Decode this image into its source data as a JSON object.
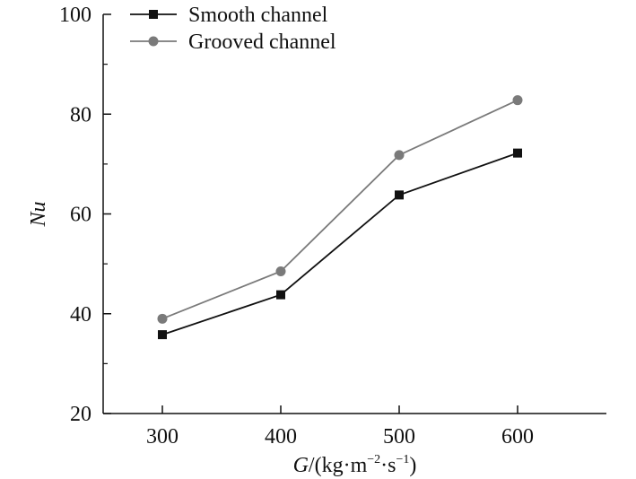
{
  "chart_data": {
    "type": "line",
    "title": "",
    "categories": [
      "300",
      "400",
      "500",
      "600"
    ],
    "x": [
      300,
      400,
      500,
      600
    ],
    "xlabel": "G/(kg·m⁻²·s⁻¹)",
    "xlabel_parts": {
      "var": "G",
      "open": "/(kg·m",
      "exp1": "−2",
      "mid": "·s",
      "exp2": "−1",
      "close": ")"
    },
    "ylabel": "Nu",
    "xlim": [
      250,
      675
    ],
    "ylim": [
      20,
      100
    ],
    "yticks": [
      20,
      40,
      60,
      80,
      100
    ],
    "yticks_minor": [
      30,
      50,
      70,
      90
    ],
    "xticks": [
      300,
      400,
      500,
      600
    ],
    "grid": false,
    "legend_position": "top-left",
    "series": [
      {
        "name": "Smooth channel",
        "marker": "square",
        "color": "#111111",
        "values": [
          35.8,
          43.8,
          63.8,
          72.2
        ]
      },
      {
        "name": "Grooved channel",
        "marker": "circle",
        "color": "#7a7a7a",
        "values": [
          39.0,
          48.5,
          71.8,
          82.8
        ]
      }
    ]
  }
}
